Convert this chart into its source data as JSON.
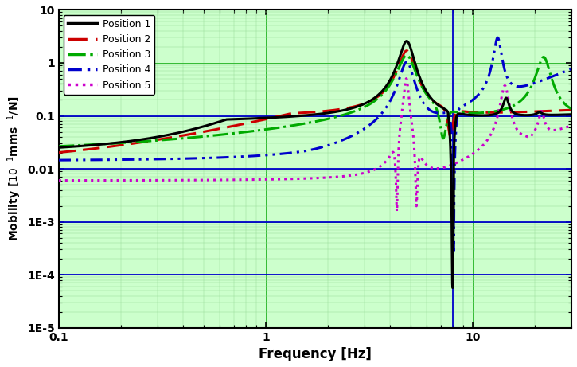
{
  "title": "",
  "xlabel": "Frequency [Hz]",
  "ylabel": "Mobility [10$^{-1}$mms$^{-1}$/N]",
  "xlim": [
    0.1,
    30
  ],
  "ylim": [
    1e-05,
    10
  ],
  "vlines": [
    8.0
  ],
  "hlines": [
    0.1,
    0.01,
    0.001,
    0.0001
  ],
  "bg_color": "#ccffcc",
  "grid_major_color": "#33bb33",
  "grid_minor_color": "#99dd99",
  "ref_line_color": "#0000cc",
  "legend_labels": [
    "Position 1",
    "Position 2",
    "Position 3",
    "Position 4",
    "Position 5"
  ],
  "line_colors": [
    "#000000",
    "#cc0000",
    "#00aa00",
    "#0000cc",
    "#cc00cc"
  ],
  "line_widths": [
    2.2,
    2.2,
    2.2,
    2.2,
    2.2
  ]
}
